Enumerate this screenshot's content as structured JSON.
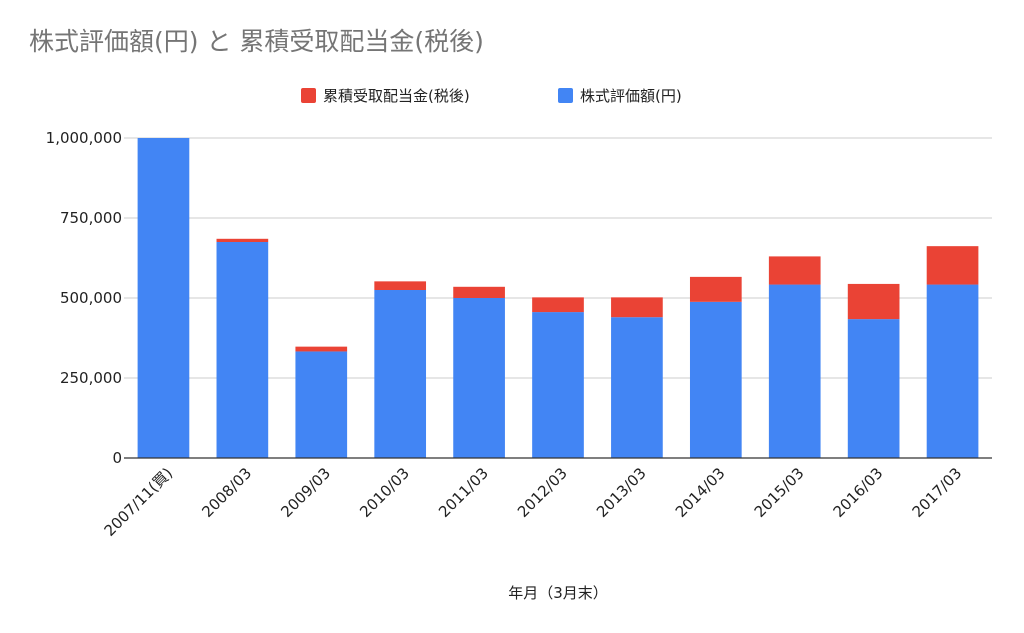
{
  "title": "株式評価額(円) と 累積受取配当金(税後)",
  "chart_data": {
    "type": "bar",
    "stacked": true,
    "title": "株式評価額(円) と 累積受取配当金(税後)",
    "xlabel": "年月（3月末）",
    "ylabel": "",
    "ylim": [
      0,
      1000000
    ],
    "yticks": [
      0,
      250000,
      500000,
      750000,
      1000000
    ],
    "ytick_labels": [
      "0",
      "250,000",
      "500,000",
      "750,000",
      "1,000,000"
    ],
    "grid": true,
    "legend_position": "top",
    "categories": [
      "2007/11(買)",
      "2008/03",
      "2009/03",
      "2010/03",
      "2011/03",
      "2012/03",
      "2013/03",
      "2014/03",
      "2015/03",
      "2016/03",
      "2017/03"
    ],
    "series": [
      {
        "name": "株式評価額(円)",
        "color": "#4285f4",
        "values": [
          1000000,
          675000,
          333000,
          525000,
          500000,
          456000,
          440000,
          488000,
          542000,
          434000,
          542000
        ]
      },
      {
        "name": "累積受取配当金(税後)",
        "color": "#ea4335",
        "values": [
          0,
          10000,
          15000,
          27000,
          35000,
          46000,
          62000,
          78000,
          88000,
          110000,
          120000
        ]
      }
    ],
    "legend_order": [
      "累積受取配当金(税後)",
      "株式評価額(円)"
    ]
  }
}
